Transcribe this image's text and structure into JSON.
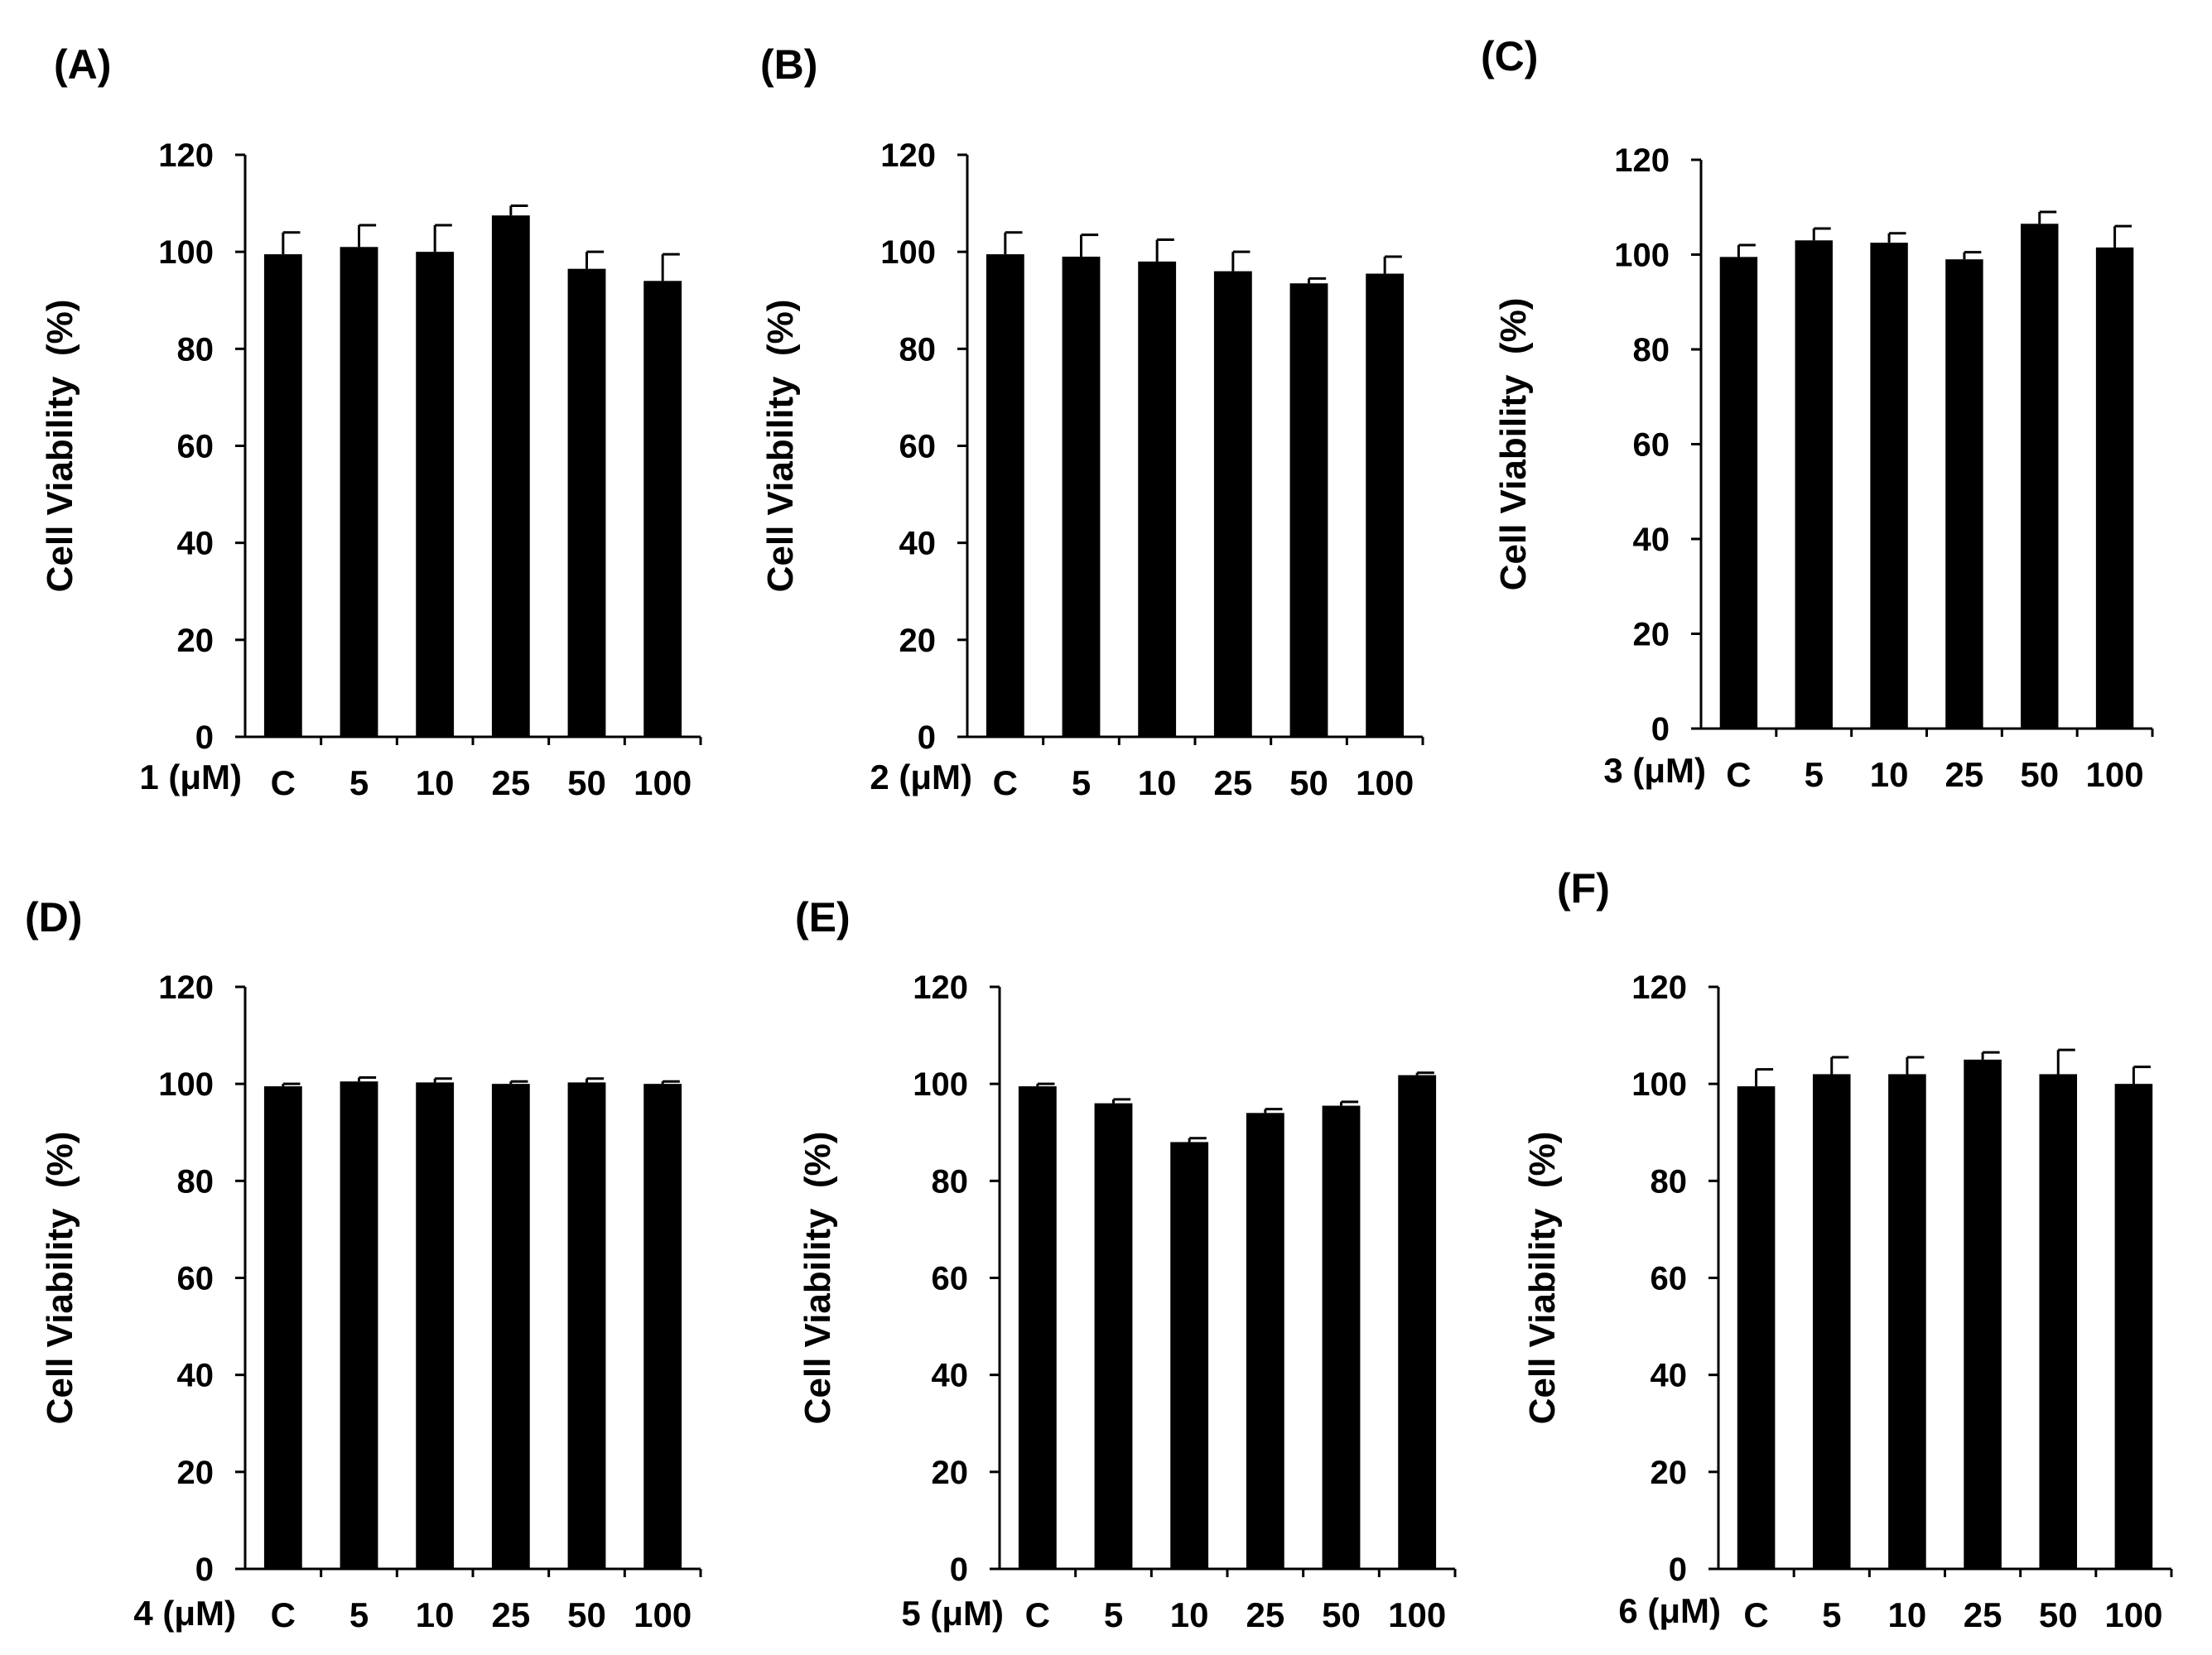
{
  "chart_data": [
    {
      "type": "bar",
      "panel_label": "(A)",
      "ylabel": "Cell Viability  (%)",
      "xlabel": "1 (μM)",
      "categories": [
        "C",
        "5",
        "10",
        "25",
        "50",
        "100"
      ],
      "values": [
        99.5,
        101,
        100,
        107.5,
        96.5,
        94
      ],
      "errors": [
        4.5,
        4.5,
        5.5,
        2,
        3.5,
        5.5
      ],
      "ylim": [
        0,
        120
      ],
      "yticks": [
        "0",
        "20",
        "40",
        "60",
        "80",
        "100",
        "120"
      ],
      "bar_color": "#000000"
    },
    {
      "type": "bar",
      "panel_label": "(B)",
      "ylabel": "Cell Viability  (%)",
      "xlabel": "2 (μM)",
      "categories": [
        "C",
        "5",
        "10",
        "25",
        "50",
        "100"
      ],
      "values": [
        99.5,
        99,
        98,
        96,
        93.5,
        95.5
      ],
      "errors": [
        4.5,
        4.5,
        4.5,
        4,
        1,
        3.5
      ],
      "ylim": [
        0,
        120
      ],
      "yticks": [
        "0",
        "20",
        "40",
        "60",
        "80",
        "100",
        "120"
      ],
      "bar_color": "#000000"
    },
    {
      "type": "bar",
      "panel_label": "(C)",
      "ylabel": "Cell Viability  (%)",
      "xlabel": "3 (μM)",
      "categories": [
        "C",
        "5",
        "10",
        "25",
        "50",
        "100"
      ],
      "values": [
        99.5,
        103,
        102.5,
        99,
        106.5,
        101.5
      ],
      "errors": [
        2.5,
        2.5,
        2,
        1.5,
        2.5,
        4.5
      ],
      "ylim": [
        0,
        120
      ],
      "yticks": [
        "0",
        "20",
        "40",
        "60",
        "80",
        "100",
        "120"
      ],
      "bar_color": "#000000"
    },
    {
      "type": "bar",
      "panel_label": "(D)",
      "ylabel": "Cell Viability  (%)",
      "xlabel": "4 (μM)",
      "categories": [
        "C",
        "5",
        "10",
        "25",
        "50",
        "100"
      ],
      "values": [
        99.5,
        100.5,
        100.3,
        100,
        100.3,
        100
      ],
      "errors": [
        0.5,
        0.8,
        0.8,
        0.5,
        0.8,
        0.5
      ],
      "ylim": [
        0,
        120
      ],
      "yticks": [
        "0",
        "20",
        "40",
        "60",
        "80",
        "100",
        "120"
      ],
      "bar_color": "#000000"
    },
    {
      "type": "bar",
      "panel_label": "(E)",
      "ylabel": "Cell Viability  (%)",
      "xlabel": "5 (μM)",
      "categories": [
        "C",
        "5",
        "10",
        "25",
        "50",
        "100"
      ],
      "values": [
        99.5,
        96,
        88,
        94,
        95.5,
        101.8
      ],
      "errors": [
        0.5,
        0.8,
        0.8,
        0.8,
        0.8,
        0.5
      ],
      "ylim": [
        0,
        120
      ],
      "yticks": [
        "0",
        "20",
        "40",
        "60",
        "80",
        "100",
        "120"
      ],
      "bar_color": "#000000"
    },
    {
      "type": "bar",
      "panel_label": "(F)",
      "ylabel": "Cell Viability  (%)",
      "xlabel": "6 (μM)",
      "categories": [
        "C",
        "5",
        "10",
        "25",
        "50",
        "100"
      ],
      "values": [
        99.5,
        102,
        102,
        105,
        102,
        100
      ],
      "errors": [
        3.5,
        3.5,
        3.5,
        1.5,
        5,
        3.5
      ],
      "ylim": [
        0,
        120
      ],
      "yticks": [
        "0",
        "20",
        "40",
        "60",
        "80",
        "100",
        "120"
      ],
      "bar_color": "#000000"
    }
  ]
}
